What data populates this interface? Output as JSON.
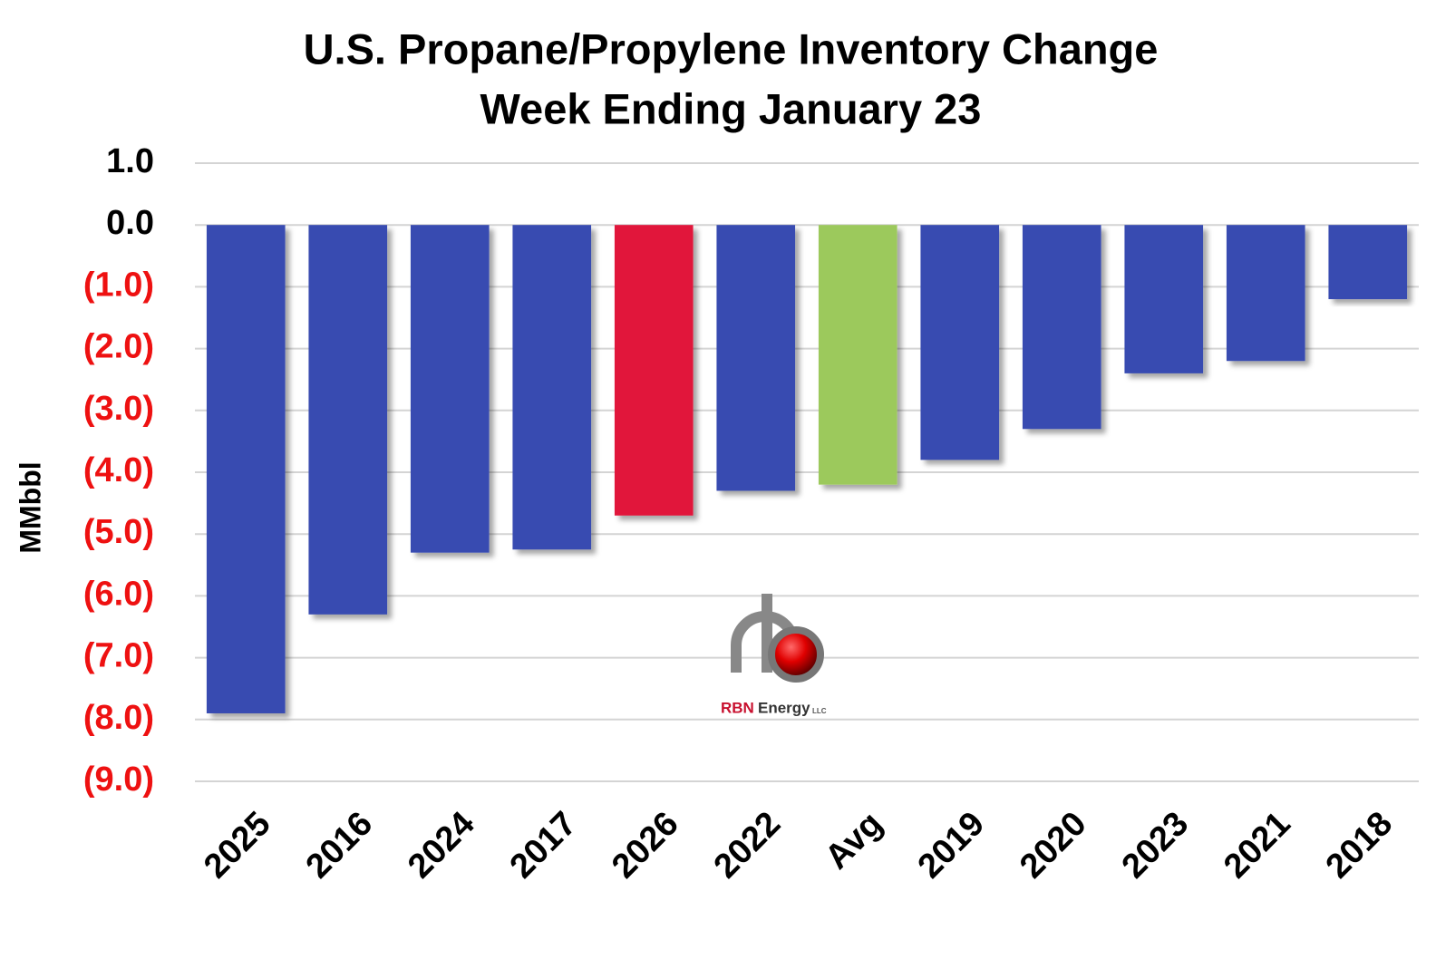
{
  "chart_data": {
    "type": "bar",
    "title": "U.S. Propane/Propylene Inventory Change",
    "subtitle": "Week Ending January 23",
    "y_label": "MMbbl",
    "categories": [
      "2025",
      "2016",
      "2024",
      "2017",
      "2026",
      "2022",
      "Avg",
      "2019",
      "2020",
      "2023",
      "2021",
      "2018"
    ],
    "values": [
      -7.9,
      -6.3,
      -5.3,
      -5.25,
      -4.7,
      -4.3,
      -4.2,
      -3.8,
      -3.3,
      -2.4,
      -2.2,
      -1.2
    ],
    "colors": [
      "#374bb1",
      "#374bb1",
      "#374bb1",
      "#374bb1",
      "#e1193a",
      "#374bb1",
      "#9cc95b",
      "#374bb1",
      "#374bb1",
      "#374bb1",
      "#374bb1",
      "#374bb1"
    ],
    "ylim": [
      -9,
      1
    ],
    "yticks": [
      {
        "value": 1,
        "label": "1.0"
      },
      {
        "value": 0,
        "label": "0.0"
      },
      {
        "value": -1,
        "label": "(1.0)"
      },
      {
        "value": -2,
        "label": "(2.0)"
      },
      {
        "value": -3,
        "label": "(3.0)"
      },
      {
        "value": -4,
        "label": "(4.0)"
      },
      {
        "value": -5,
        "label": "(5.0)"
      },
      {
        "value": -6,
        "label": "(6.0)"
      },
      {
        "value": -7,
        "label": "(7.0)"
      },
      {
        "value": -8,
        "label": "(8.0)"
      },
      {
        "value": -9,
        "label": "(9.0)"
      }
    ],
    "negative_tick_color": "#ee1111",
    "grid": true,
    "logo": [
      "RBN",
      "Energy",
      "LLC"
    ]
  }
}
